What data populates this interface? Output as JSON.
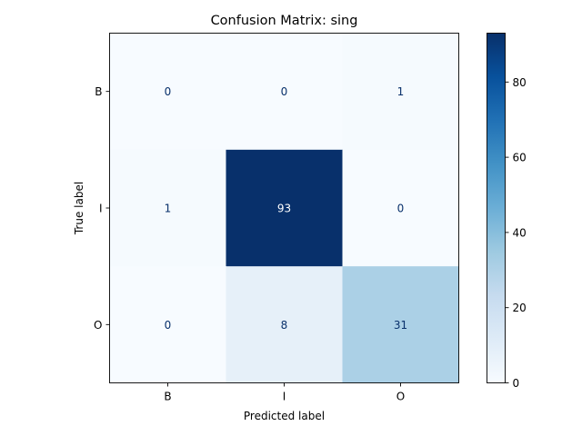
{
  "chart_data": {
    "type": "heatmap",
    "title": "Confusion Matrix: sing",
    "xlabel": "Predicted label",
    "ylabel": "True label",
    "x_categories": [
      "B",
      "I",
      "O"
    ],
    "y_categories": [
      "B",
      "I",
      "O"
    ],
    "matrix": [
      [
        0,
        0,
        1
      ],
      [
        1,
        93,
        0
      ],
      [
        0,
        8,
        31
      ]
    ],
    "colormap": "Blues",
    "colorbar": {
      "min": 0,
      "max": 93,
      "ticks": [
        0,
        20,
        40,
        60,
        80
      ]
    },
    "text_colors": {
      "light_cells": "#08306b",
      "dark_cells": "#ffffff"
    }
  }
}
